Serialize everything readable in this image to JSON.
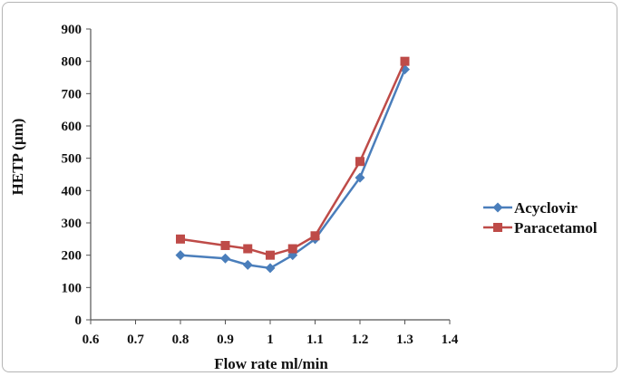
{
  "chart_data": {
    "type": "line",
    "xlabel": "Flow rate ml/min",
    "ylabel": "HETP (µm)",
    "xlim": [
      0.6,
      1.4
    ],
    "ylim": [
      0,
      900
    ],
    "x_ticks": [
      "0.6",
      "0.7",
      "0.8",
      "0.9",
      "1",
      "1.1",
      "1.2",
      "1.3",
      "1.4"
    ],
    "y_ticks": [
      "0",
      "100",
      "200",
      "300",
      "400",
      "500",
      "600",
      "700",
      "800",
      "900"
    ],
    "grid": false,
    "legend_position": "right",
    "series": [
      {
        "name": "Acyclovir",
        "color": "#4a7ebb",
        "marker": "diamond",
        "x": [
          0.8,
          0.9,
          0.95,
          1.0,
          1.05,
          1.1,
          1.2,
          1.3
        ],
        "y": [
          200,
          190,
          170,
          160,
          200,
          250,
          440,
          775
        ]
      },
      {
        "name": "Paracetamol",
        "color": "#be4b48",
        "marker": "square",
        "x": [
          0.8,
          0.9,
          0.95,
          1.0,
          1.05,
          1.1,
          1.2,
          1.3
        ],
        "y": [
          250,
          230,
          220,
          200,
          220,
          260,
          490,
          800
        ]
      }
    ]
  }
}
